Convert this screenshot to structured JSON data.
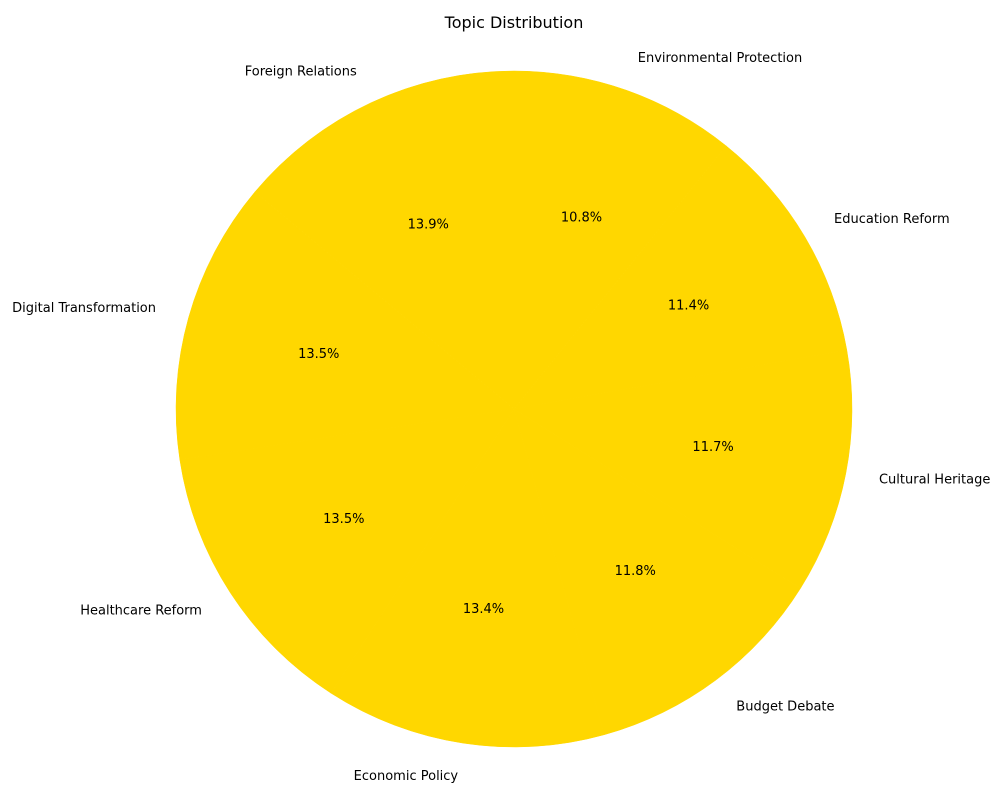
{
  "chart_data": {
    "type": "pie",
    "title": "Topic Distribution",
    "slice_color": "#FFD700",
    "start_angle_deg": 90,
    "direction": "clockwise",
    "slices": [
      {
        "label": "Environmental Protection",
        "value": 10.8,
        "pct_text": "10.8%"
      },
      {
        "label": "Education Reform",
        "value": 11.4,
        "pct_text": "11.4%"
      },
      {
        "label": "Cultural Heritage",
        "value": 11.7,
        "pct_text": "11.7%"
      },
      {
        "label": "Budget Debate",
        "value": 11.8,
        "pct_text": "11.8%"
      },
      {
        "label": "Economic Policy",
        "value": 13.4,
        "pct_text": "13.4%"
      },
      {
        "label": "Healthcare Reform",
        "value": 13.5,
        "pct_text": "13.5%"
      },
      {
        "label": "Digital Transformation",
        "value": 13.5,
        "pct_text": "13.5%"
      },
      {
        "label": "Foreign Relations",
        "value": 13.9,
        "pct_text": "13.9%"
      }
    ]
  }
}
